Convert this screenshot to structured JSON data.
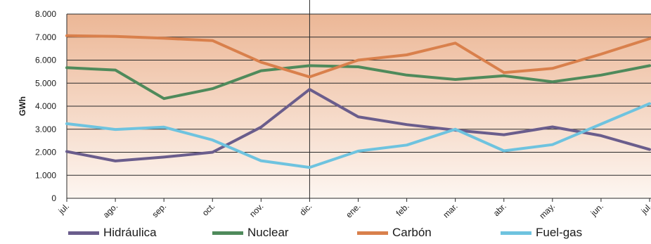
{
  "chart_data": {
    "type": "line",
    "title": "",
    "xlabel": "",
    "ylabel": "GWh",
    "ylim": [
      0,
      8000
    ],
    "ytick_labels": [
      "0",
      "1.000",
      "2.000",
      "3.000",
      "4.000",
      "5.000",
      "6.000",
      "7.000",
      "8.000"
    ],
    "categories": [
      "jul.",
      "ago.",
      "sep.",
      "oct.",
      "nov.",
      "dic.",
      "ene.",
      "feb.",
      "mar.",
      "abr.",
      "may.",
      "jun.",
      "jul."
    ],
    "grid": true,
    "legend_position": "bottom",
    "series": [
      {
        "name": "Hidráulica",
        "color": "#6a5d8c",
        "values": [
          2030,
          1620,
          1790,
          2000,
          3090,
          4730,
          3540,
          3200,
          2960,
          2760,
          3100,
          2720,
          2120
        ]
      },
      {
        "name": "Nuclear",
        "color": "#4f8a5b",
        "values": [
          5670,
          5570,
          4330,
          4760,
          5540,
          5760,
          5710,
          5350,
          5160,
          5320,
          5060,
          5350,
          5760
        ]
      },
      {
        "name": "Carbón",
        "color": "#d9804c",
        "values": [
          7060,
          7030,
          6950,
          6850,
          5910,
          5270,
          6000,
          6230,
          6740,
          5460,
          5640,
          6260,
          6930
        ]
      },
      {
        "name": "Fuel-gas",
        "color": "#6ec3df",
        "values": [
          3240,
          2990,
          3090,
          2530,
          1630,
          1340,
          2050,
          2310,
          3000,
          2060,
          2330,
          3220,
          4110
        ]
      }
    ]
  }
}
